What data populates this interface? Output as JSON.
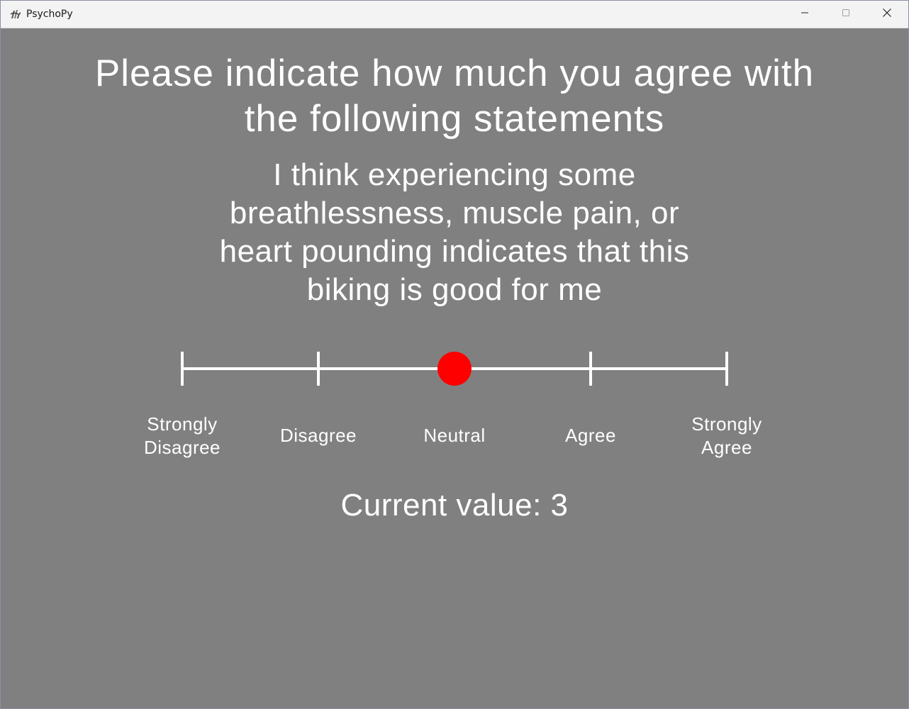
{
  "window": {
    "title": "PsychoPy",
    "app_icon": "psychopy-icon",
    "controls": {
      "minimize_icon": "minimize-icon",
      "maximize_icon": "maximize-icon",
      "close_icon": "close-icon"
    }
  },
  "screen": {
    "heading": "Please indicate how much you agree with the following statements",
    "statement": "I think experiencing some breathlessness, muscle pain, or heart pounding indicates that this biking is good for me",
    "current_value_label": "Current value: 3"
  },
  "rating_scale": {
    "labels": [
      "Strongly\nDisagree",
      "Disagree",
      "Neutral",
      "Agree",
      "Strongly\nAgree"
    ],
    "selected_index": 2,
    "selected_value": 3,
    "marker_color": "#ff0000",
    "line_color": "#ffffff"
  },
  "colors": {
    "background": "#808080",
    "text": "#ffffff",
    "titlebar": "#f3f3f3"
  }
}
